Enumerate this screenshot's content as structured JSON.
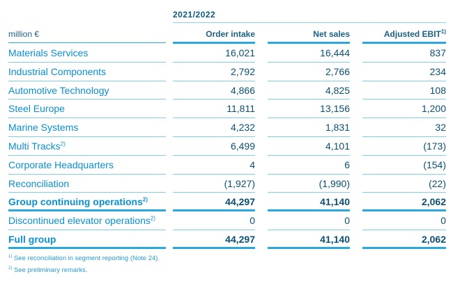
{
  "period": "2021/2022",
  "header": {
    "unit": "million €",
    "col1": "Order intake",
    "col2": "Net sales",
    "col3": "Adjusted EBIT",
    "col3_sup": "1)"
  },
  "rows": [
    {
      "label": "Materials Services",
      "sup": "",
      "order_intake": "16,021",
      "net_sales": "16,444",
      "ebit": "837"
    },
    {
      "label": "Industrial Components",
      "sup": "",
      "order_intake": "2,792",
      "net_sales": "2,766",
      "ebit": "234"
    },
    {
      "label": "Automotive Technology",
      "sup": "",
      "order_intake": "4,866",
      "net_sales": "4,825",
      "ebit": "108"
    },
    {
      "label": "Steel Europe",
      "sup": "",
      "order_intake": "11,811",
      "net_sales": "13,156",
      "ebit": "1,200"
    },
    {
      "label": "Marine Systems",
      "sup": "",
      "order_intake": "4,232",
      "net_sales": "1,831",
      "ebit": "32"
    },
    {
      "label": "Multi Tracks",
      "sup": "2)",
      "order_intake": "6,499",
      "net_sales": "4,101",
      "ebit": "(173)"
    },
    {
      "label": "Corporate Headquarters",
      "sup": "",
      "order_intake": "4",
      "net_sales": "6",
      "ebit": "(154)"
    },
    {
      "label": "Reconciliation",
      "sup": "",
      "order_intake": "(1,927)",
      "net_sales": "(1,990)",
      "ebit": "(22)"
    },
    {
      "label": "Group continuing operations",
      "sup": "2)",
      "order_intake": "44,297",
      "net_sales": "41,140",
      "ebit": "2,062"
    },
    {
      "label": "Discontinued elevator operations",
      "sup": "2)",
      "order_intake": "0",
      "net_sales": "0",
      "ebit": "0"
    },
    {
      "label": "Full group",
      "sup": "",
      "order_intake": "44,297",
      "net_sales": "41,140",
      "ebit": "2,062"
    }
  ],
  "footnotes": [
    {
      "mark": "1)",
      "text": "See reconciliation in segment reporting (Note 24)."
    },
    {
      "mark": "2)",
      "text": "See preliminary remarks."
    }
  ]
}
